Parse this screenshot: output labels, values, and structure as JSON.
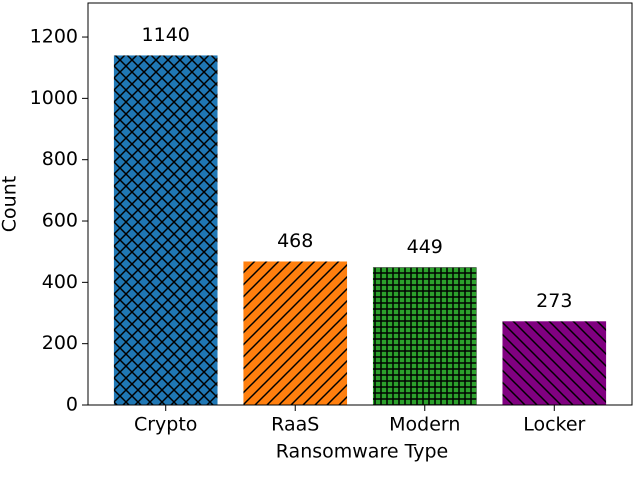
{
  "chart_data": {
    "type": "bar",
    "x_label": "Ransomware Type",
    "y_label": "Count",
    "categories": [
      "Crypto",
      "RaaS",
      "Modern",
      "Locker"
    ],
    "values": [
      1140,
      468,
      449,
      273
    ],
    "colors": [
      "#1f77b4",
      "#ff7f0e",
      "#2ca02c",
      "#800080"
    ],
    "hatches": [
      "xx",
      "//",
      "++",
      "\\\\"
    ],
    "ylim": [
      0,
      1311
    ],
    "yticks": [
      0,
      200,
      400,
      600,
      800,
      1000,
      1200
    ],
    "value_labels_shown": true
  }
}
